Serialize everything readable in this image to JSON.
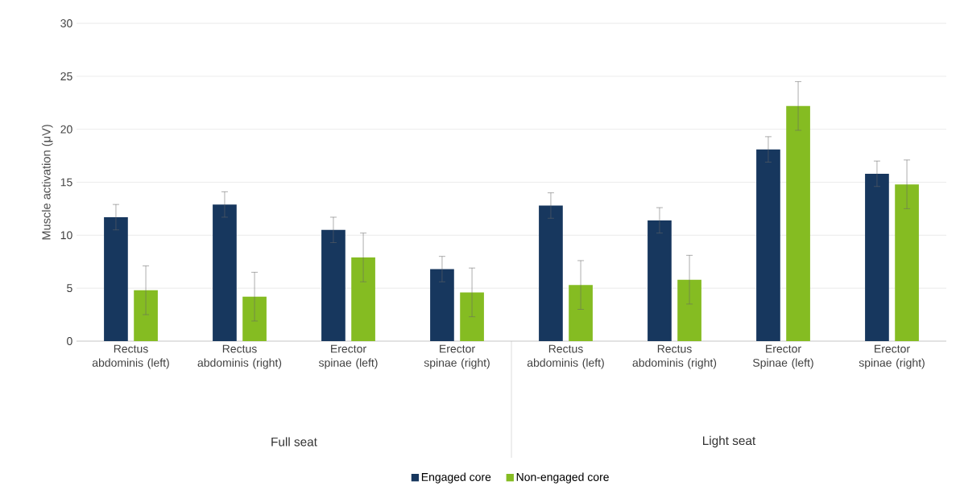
{
  "chart_data": {
    "type": "bar",
    "ylabel": "Muscle activation (μV)",
    "categories": [
      "Rectus abdominis (left)",
      "Rectus abdominis (right)",
      "Erector spinae (left)",
      "Erector spinae (right)",
      "Rectus abdominis (left)",
      "Rectus abdominis (right)",
      "Erector Spinae (left)",
      "Erector spinae (right)"
    ],
    "series": [
      {
        "name": "Engaged core",
        "color": "#17375e",
        "values": [
          11.7,
          12.9,
          10.5,
          6.8,
          12.8,
          11.4,
          18.1,
          15.8
        ],
        "errors": [
          1.2,
          1.2,
          1.2,
          1.2,
          1.2,
          1.2,
          1.2,
          1.2
        ]
      },
      {
        "name": "Non-engaged core",
        "color": "#85bc22",
        "values": [
          4.8,
          4.2,
          7.9,
          4.6,
          5.3,
          5.8,
          22.2,
          14.8
        ],
        "errors": [
          2.3,
          2.3,
          2.3,
          2.3,
          2.3,
          2.3,
          2.3,
          2.3
        ]
      }
    ],
    "annotations": [
      "Full seat",
      "Light seat"
    ],
    "ylim": [
      0,
      30
    ],
    "yticks": [
      0,
      5,
      10,
      15,
      20,
      25,
      30
    ],
    "grid": "y",
    "legend": "bottom"
  }
}
